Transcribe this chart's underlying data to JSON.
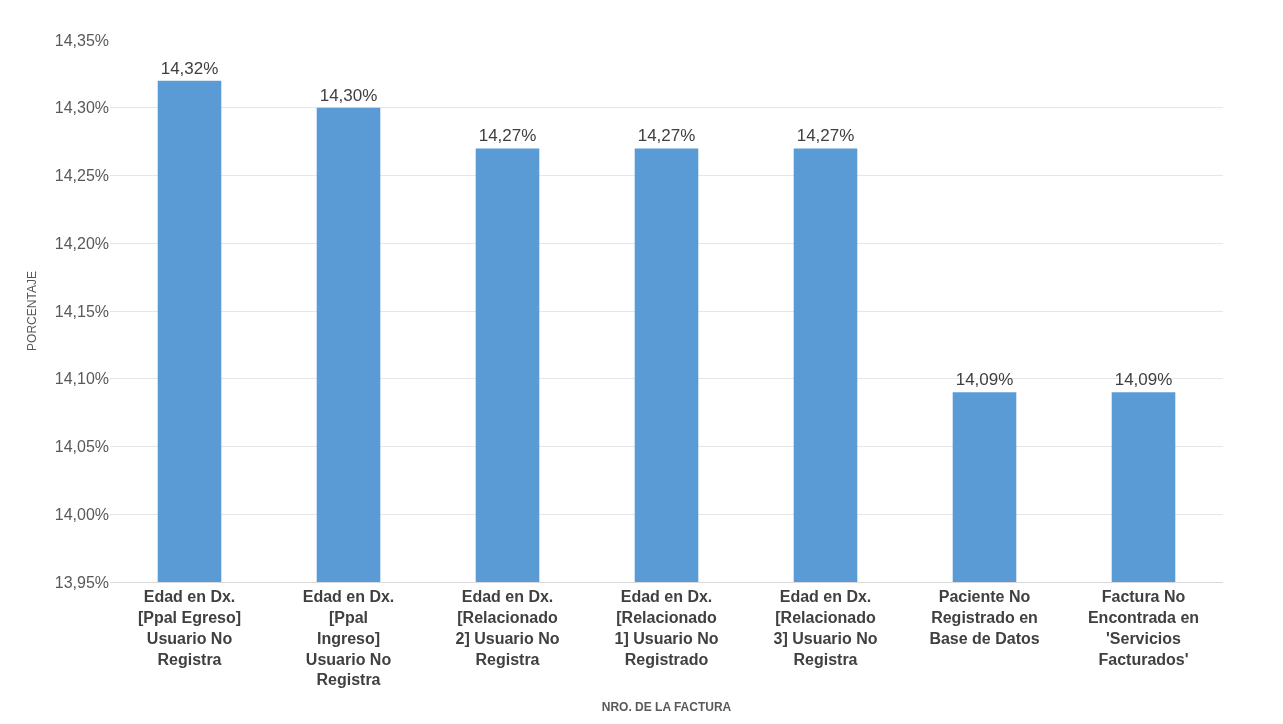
{
  "chart_data": {
    "type": "bar",
    "xlabel": "NRO. DE LA FACTURA",
    "ylabel": "PORCENTAJE",
    "categories": [
      "Edad en Dx. [Ppal Egreso] Usuario No Registra",
      "Edad en Dx. [Ppal Ingreso] Usuario No Registra",
      "Edad en Dx. [Relacionado 2] Usuario No Registra",
      "Edad en Dx. [Relacionado 1] Usuario No Registrado",
      "Edad en Dx. [Relacionado 3] Usuario No Registra",
      "Paciente No Registrado en Base de Datos",
      "Factura No Encontrada en 'Servicios Facturados'"
    ],
    "values": [
      14.32,
      14.3,
      14.27,
      14.27,
      14.27,
      14.09,
      14.09
    ],
    "value_labels": [
      "14,32%",
      "14,30%",
      "14,27%",
      "14,27%",
      "14,27%",
      "14,09%",
      "14,09%"
    ],
    "color": "#5b9bd5",
    "ylim": [
      13.95,
      14.35
    ],
    "yticks": [
      {
        "value": 13.95,
        "label": "13,95%"
      },
      {
        "value": 14.0,
        "label": "14,00%"
      },
      {
        "value": 14.05,
        "label": "14,05%"
      },
      {
        "value": 14.1,
        "label": "14,10%"
      },
      {
        "value": 14.15,
        "label": "14,15%"
      },
      {
        "value": 14.2,
        "label": "14,20%"
      },
      {
        "value": 14.25,
        "label": "14,25%"
      },
      {
        "value": 14.3,
        "label": "14,30%"
      },
      {
        "value": 14.35,
        "label": "14,35%"
      }
    ],
    "grid": "y",
    "legend": false
  }
}
